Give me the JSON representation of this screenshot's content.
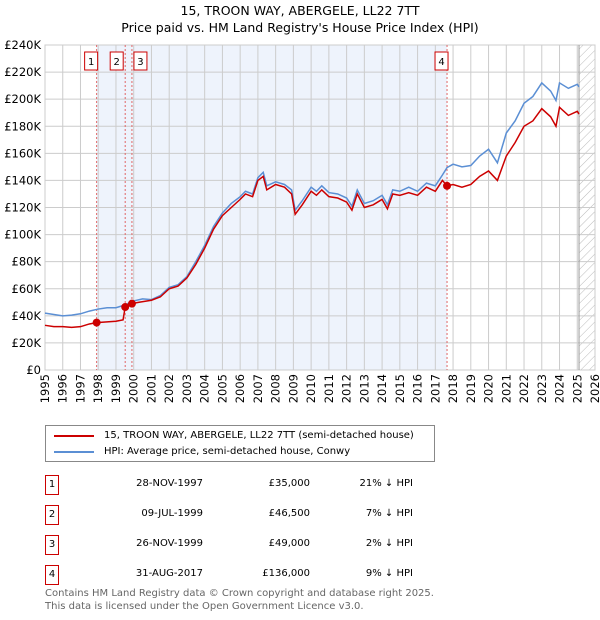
{
  "title": "15, TROON WAY, ABERGELE, LL22 7TT",
  "subtitle": "Price paid vs. HM Land Registry's House Price Index (HPI)",
  "chart_data": {
    "type": "line",
    "title": "15, TROON WAY, ABERGELE, LL22 7TT",
    "ylim": [
      0,
      240000
    ],
    "xlim": [
      1995,
      2026
    ],
    "yticks": [
      "£0",
      "£20K",
      "£40K",
      "£60K",
      "£80K",
      "£100K",
      "£120K",
      "£140K",
      "£160K",
      "£180K",
      "£200K",
      "£220K",
      "£240K"
    ],
    "xticks": [
      "1995",
      "1996",
      "1997",
      "1998",
      "1999",
      "2000",
      "2001",
      "2002",
      "2003",
      "2004",
      "2005",
      "2006",
      "2007",
      "2008",
      "2009",
      "2010",
      "2011",
      "2012",
      "2013",
      "2014",
      "2015",
      "2016",
      "2017",
      "2018",
      "2019",
      "2020",
      "2021",
      "2022",
      "2023",
      "2024",
      "2025",
      "2026"
    ],
    "grid": true,
    "shaded_range": [
      1997.91,
      2017.66
    ],
    "forecast_hatch_from": 2025.1,
    "series": [
      {
        "name": "15, TROON WAY, ABERGELE, LL22 7TT (semi-detached house)",
        "color": "#cc0000",
        "points": [
          [
            1995,
            33000
          ],
          [
            1995.5,
            32000
          ],
          [
            1996,
            32000
          ],
          [
            1996.5,
            31500
          ],
          [
            1997,
            32000
          ],
          [
            1997.5,
            34000
          ],
          [
            1997.91,
            35000
          ],
          [
            1998.5,
            35500
          ],
          [
            1999,
            36000
          ],
          [
            1999.4,
            37000
          ],
          [
            1999.52,
            46500
          ],
          [
            1999.9,
            49000
          ],
          [
            2000.3,
            50000
          ],
          [
            2001,
            51500
          ],
          [
            2001.5,
            54000
          ],
          [
            2002,
            60000
          ],
          [
            2002.5,
            62000
          ],
          [
            2003,
            68000
          ],
          [
            2003.5,
            78000
          ],
          [
            2004,
            90000
          ],
          [
            2004.5,
            104000
          ],
          [
            2005,
            114000
          ],
          [
            2005.5,
            120000
          ],
          [
            2006,
            126000
          ],
          [
            2006.3,
            130000
          ],
          [
            2006.7,
            128000
          ],
          [
            2007,
            140000
          ],
          [
            2007.3,
            143000
          ],
          [
            2007.5,
            133000
          ],
          [
            2008,
            137000
          ],
          [
            2008.5,
            135000
          ],
          [
            2008.9,
            130000
          ],
          [
            2009.1,
            115000
          ],
          [
            2009.5,
            122000
          ],
          [
            2010,
            132000
          ],
          [
            2010.3,
            129000
          ],
          [
            2010.6,
            133000
          ],
          [
            2011,
            128000
          ],
          [
            2011.5,
            127000
          ],
          [
            2012,
            124000
          ],
          [
            2012.3,
            118000
          ],
          [
            2012.6,
            130000
          ],
          [
            2013,
            120000
          ],
          [
            2013.5,
            122000
          ],
          [
            2014,
            126000
          ],
          [
            2014.3,
            119000
          ],
          [
            2014.6,
            130000
          ],
          [
            2015,
            129000
          ],
          [
            2015.5,
            131000
          ],
          [
            2016,
            129000
          ],
          [
            2016.5,
            135000
          ],
          [
            2017,
            132000
          ],
          [
            2017.4,
            140000
          ],
          [
            2017.66,
            136000
          ],
          [
            2018,
            137000
          ],
          [
            2018.5,
            135000
          ],
          [
            2019,
            137000
          ],
          [
            2019.5,
            143000
          ],
          [
            2020,
            147000
          ],
          [
            2020.5,
            140000
          ],
          [
            2021,
            158000
          ],
          [
            2021.5,
            168000
          ],
          [
            2022,
            180000
          ],
          [
            2022.5,
            184000
          ],
          [
            2023,
            193000
          ],
          [
            2023.5,
            187000
          ],
          [
            2023.8,
            180000
          ],
          [
            2024,
            194000
          ],
          [
            2024.5,
            188000
          ],
          [
            2025,
            191000
          ],
          [
            2025.1,
            189000
          ]
        ]
      },
      {
        "name": "HPI: Average price, semi-detached house, Conwy",
        "color": "#5b8fd4",
        "points": [
          [
            1995,
            42000
          ],
          [
            1995.5,
            41000
          ],
          [
            1996,
            40000
          ],
          [
            1996.5,
            40500
          ],
          [
            1997,
            41500
          ],
          [
            1997.5,
            43500
          ],
          [
            1998,
            45000
          ],
          [
            1998.5,
            46000
          ],
          [
            1999,
            46000
          ],
          [
            1999.5,
            48000
          ],
          [
            2000,
            51000
          ],
          [
            2000.5,
            52500
          ],
          [
            2001,
            52000
          ],
          [
            2001.5,
            55000
          ],
          [
            2002,
            61000
          ],
          [
            2002.5,
            63000
          ],
          [
            2003,
            69000
          ],
          [
            2003.5,
            80000
          ],
          [
            2004,
            92000
          ],
          [
            2004.5,
            106000
          ],
          [
            2005,
            116000
          ],
          [
            2005.5,
            123000
          ],
          [
            2006,
            128000
          ],
          [
            2006.3,
            132000
          ],
          [
            2006.7,
            130000
          ],
          [
            2007,
            142000
          ],
          [
            2007.3,
            146000
          ],
          [
            2007.5,
            136000
          ],
          [
            2008,
            139000
          ],
          [
            2008.5,
            137000
          ],
          [
            2008.9,
            133000
          ],
          [
            2009.1,
            118000
          ],
          [
            2009.5,
            125000
          ],
          [
            2010,
            135000
          ],
          [
            2010.3,
            132000
          ],
          [
            2010.6,
            136000
          ],
          [
            2011,
            131000
          ],
          [
            2011.5,
            130000
          ],
          [
            2012,
            127000
          ],
          [
            2012.3,
            121000
          ],
          [
            2012.6,
            133000
          ],
          [
            2013,
            123000
          ],
          [
            2013.5,
            125000
          ],
          [
            2014,
            129000
          ],
          [
            2014.3,
            122000
          ],
          [
            2014.6,
            133000
          ],
          [
            2015,
            132000
          ],
          [
            2015.5,
            135000
          ],
          [
            2016,
            132000
          ],
          [
            2016.5,
            138000
          ],
          [
            2017,
            136000
          ],
          [
            2017.4,
            144000
          ],
          [
            2017.66,
            149500
          ],
          [
            2018,
            152000
          ],
          [
            2018.5,
            150000
          ],
          [
            2019,
            151000
          ],
          [
            2019.5,
            158000
          ],
          [
            2020,
            163000
          ],
          [
            2020.5,
            153000
          ],
          [
            2021,
            175000
          ],
          [
            2021.5,
            184000
          ],
          [
            2022,
            197000
          ],
          [
            2022.5,
            202000
          ],
          [
            2023,
            212000
          ],
          [
            2023.5,
            206000
          ],
          [
            2023.8,
            199000
          ],
          [
            2024,
            212000
          ],
          [
            2024.5,
            208000
          ],
          [
            2025,
            211000
          ],
          [
            2025.1,
            209000
          ]
        ]
      }
    ],
    "sales": [
      {
        "label": "1",
        "year": 1997.91,
        "value": 35000
      },
      {
        "label": "2",
        "year": 1999.52,
        "value": 46500
      },
      {
        "label": "3",
        "year": 1999.9,
        "value": 49000
      },
      {
        "label": "4",
        "year": 2017.66,
        "value": 136000
      }
    ]
  },
  "legend": {
    "property": "15, TROON WAY, ABERGELE, LL22 7TT (semi-detached house)",
    "hpi": "HPI: Average price, semi-detached house, Conwy"
  },
  "transactions": [
    {
      "num": "1",
      "date": "28-NOV-1997",
      "price": "£35,000",
      "hpi": "21% ↓ HPI"
    },
    {
      "num": "2",
      "date": "09-JUL-1999",
      "price": "£46,500",
      "hpi": "7% ↓ HPI"
    },
    {
      "num": "3",
      "date": "26-NOV-1999",
      "price": "£49,000",
      "hpi": "2% ↓ HPI"
    },
    {
      "num": "4",
      "date": "31-AUG-2017",
      "price": "£136,000",
      "hpi": "9% ↓ HPI"
    }
  ],
  "footer": {
    "line1": "Contains HM Land Registry data © Crown copyright and database right 2025.",
    "line2": "This data is licensed under the Open Government Licence v3.0."
  }
}
